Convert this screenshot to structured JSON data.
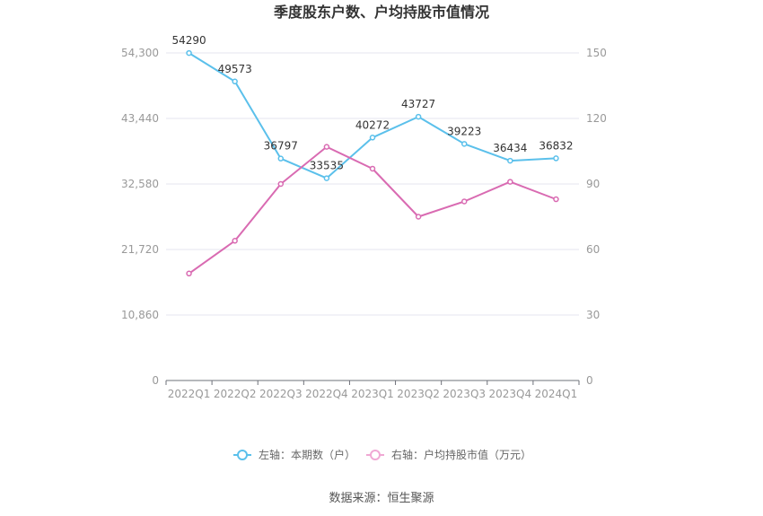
{
  "chart_data": {
    "type": "line",
    "title": "季度股东户数、户均持股市值情况",
    "categories": [
      "2022Q1",
      "2022Q2",
      "2022Q3",
      "2022Q4",
      "2023Q1",
      "2023Q2",
      "2023Q3",
      "2023Q4",
      "2024Q1"
    ],
    "left_axis": {
      "ticks": [
        "0",
        "10,860",
        "21,720",
        "32,580",
        "43,440",
        "54,300"
      ],
      "ylim": [
        0,
        54300
      ]
    },
    "right_axis": {
      "ticks": [
        "0",
        "30",
        "60",
        "90",
        "120",
        "150"
      ],
      "ylim": [
        0,
        150
      ]
    },
    "series": [
      {
        "name": "左轴：本期数（户）",
        "axis": "left",
        "color": "#5bc0eb",
        "values": [
          54290,
          49573,
          36797,
          33535,
          40272,
          43727,
          39223,
          36434,
          36832
        ],
        "labels": [
          "54290",
          "49573",
          "36797",
          "33535",
          "40272",
          "43727",
          "39223",
          "36434",
          "36832"
        ]
      },
      {
        "name": "右轴：户均持股市值（万元）",
        "axis": "right",
        "color": "#d96bb2",
        "values": [
          49,
          64,
          90,
          107,
          97,
          75,
          82,
          91,
          83
        ]
      }
    ],
    "grid": true,
    "legend_position": "bottom"
  },
  "source": "数据来源：恒生聚源"
}
